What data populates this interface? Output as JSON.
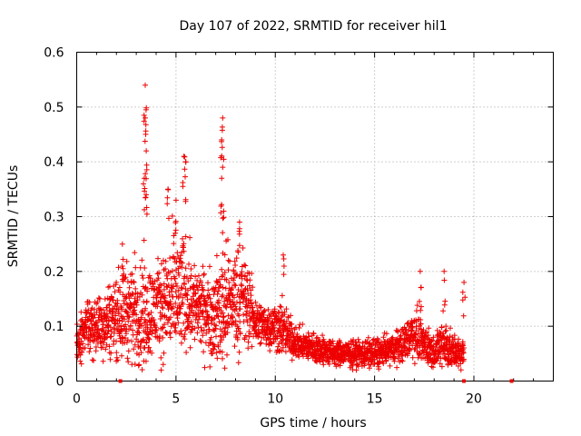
{
  "chart_data": {
    "type": "scatter",
    "title": "Day 107 of 2022, SRMTID for receiver hil1",
    "xlabel": "GPS time / hours",
    "ylabel": "SRMTID / TECUs",
    "xlim": [
      0,
      24
    ],
    "ylim": [
      0,
      0.6
    ],
    "xticks": [
      0,
      5,
      10,
      15,
      20
    ],
    "xtick_labels": [
      "0",
      "5",
      "10",
      "15",
      "20"
    ],
    "yticks": [
      0,
      0.1,
      0.2,
      0.3,
      0.4,
      0.5,
      0.6
    ],
    "ytick_labels": [
      "0",
      "0.1",
      "0.2",
      "0.3",
      "0.4",
      "0.5",
      "0.6"
    ],
    "grid": true,
    "point_marker": "+",
    "point_color": "#ee0000",
    "baseline_markers_x": [
      2.2,
      19.5,
      21.9
    ],
    "envelope": {
      "x": [
        0.0,
        0.5,
        1.0,
        1.5,
        2.0,
        2.5,
        3.0,
        3.4,
        3.8,
        4.4,
        5.0,
        5.5,
        6.0,
        6.5,
        7.0,
        7.3,
        7.8,
        8.4,
        9.0,
        9.5,
        10.0,
        10.5,
        11.0,
        12.0,
        13.0,
        14.0,
        15.0,
        16.0,
        16.5,
        17.0,
        17.5,
        18.0,
        18.5,
        19.0,
        19.5
      ],
      "base": [
        0.06,
        0.1,
        0.1,
        0.11,
        0.12,
        0.13,
        0.13,
        0.12,
        0.13,
        0.14,
        0.15,
        0.16,
        0.14,
        0.12,
        0.12,
        0.13,
        0.15,
        0.15,
        0.11,
        0.1,
        0.1,
        0.09,
        0.07,
        0.06,
        0.05,
        0.05,
        0.05,
        0.06,
        0.07,
        0.09,
        0.07,
        0.05,
        0.07,
        0.05,
        0.05
      ],
      "spread": [
        0.04,
        0.05,
        0.06,
        0.07,
        0.08,
        0.09,
        0.1,
        0.12,
        0.08,
        0.1,
        0.13,
        0.11,
        0.08,
        0.08,
        0.09,
        0.12,
        0.1,
        0.1,
        0.05,
        0.04,
        0.05,
        0.05,
        0.03,
        0.03,
        0.025,
        0.025,
        0.03,
        0.03,
        0.035,
        0.05,
        0.04,
        0.03,
        0.05,
        0.03,
        0.03
      ]
    },
    "peaks": [
      {
        "x": 3.45,
        "y": 0.54
      },
      {
        "x": 3.45,
        "y": 0.48
      },
      {
        "x": 3.5,
        "y": 0.42
      },
      {
        "x": 3.4,
        "y": 0.37
      },
      {
        "x": 3.5,
        "y": 0.34
      },
      {
        "x": 5.4,
        "y": 0.41
      },
      {
        "x": 5.5,
        "y": 0.4
      },
      {
        "x": 4.6,
        "y": 0.35
      },
      {
        "x": 5.0,
        "y": 0.33
      },
      {
        "x": 7.35,
        "y": 0.48
      },
      {
        "x": 7.3,
        "y": 0.44
      },
      {
        "x": 7.3,
        "y": 0.37
      },
      {
        "x": 7.4,
        "y": 0.31
      },
      {
        "x": 8.2,
        "y": 0.29
      },
      {
        "x": 10.4,
        "y": 0.23
      },
      {
        "x": 2.3,
        "y": 0.25
      },
      {
        "x": 17.3,
        "y": 0.2
      },
      {
        "x": 18.5,
        "y": 0.2
      },
      {
        "x": 19.5,
        "y": 0.18
      }
    ],
    "points_per_hour": 130
  }
}
